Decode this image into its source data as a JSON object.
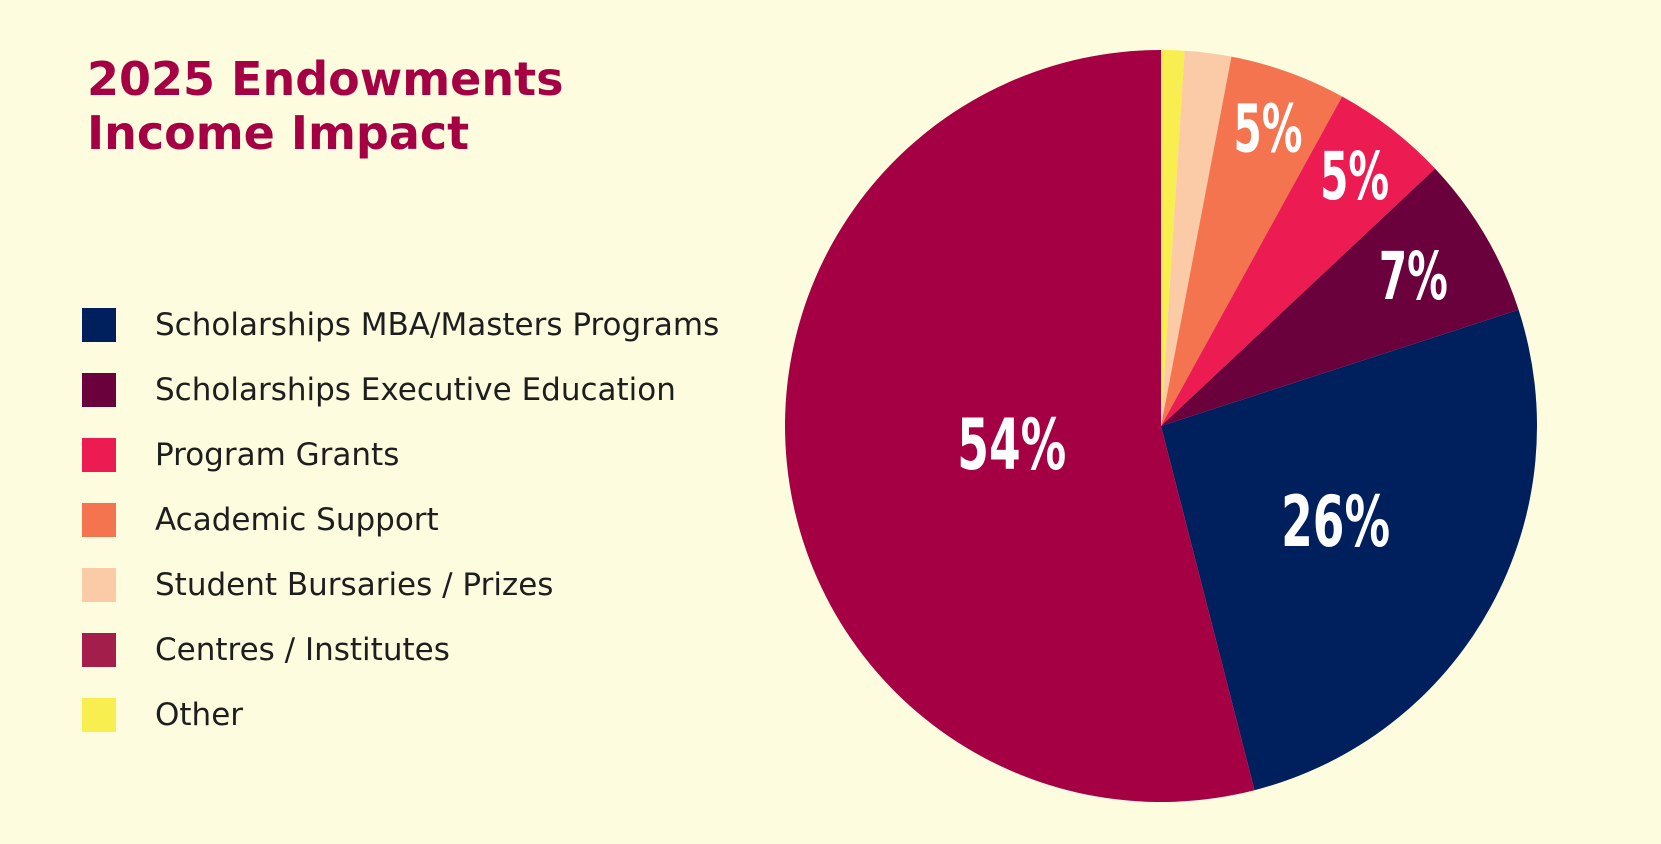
{
  "chart_data": {
    "type": "pie",
    "title_lines": [
      "2025 Endowments",
      "Income Impact"
    ],
    "legend_position": "left",
    "start": "top",
    "direction": "clockwise",
    "slices": [
      {
        "name": "Other",
        "value": 1,
        "color": "#F9EE4F",
        "label": ""
      },
      {
        "name": "Student Bursaries / Prizes",
        "value": 2,
        "color": "#FBCBA8",
        "label": ""
      },
      {
        "name": "Academic Support",
        "value": 5,
        "color": "#F4744F",
        "label": "5%"
      },
      {
        "name": "Program Grants",
        "value": 5,
        "color": "#EC1B51",
        "label": "5%"
      },
      {
        "name": "Scholarships Executive Education",
        "value": 7,
        "color": "#6A003C",
        "label": "7%"
      },
      {
        "name": "Scholarships MBA/Masters Programs",
        "value": 26,
        "color": "#001F5D",
        "label": "26%"
      },
      {
        "name": "Centres / Institutes",
        "value": 54,
        "color": "#A50044",
        "label": "54%"
      }
    ],
    "legend": [
      {
        "name": "Scholarships MBA/Masters Programs",
        "color": "#001F5D"
      },
      {
        "name": "Scholarships Executive Education",
        "color": "#6A003C"
      },
      {
        "name": "Program Grants",
        "color": "#EC1B51"
      },
      {
        "name": "Academic Support",
        "color": "#F4744F"
      },
      {
        "name": "Student Bursaries / Prizes",
        "color": "#FBCBA8"
      },
      {
        "name": "Centres / Institutes",
        "color": "#A41E4C"
      },
      {
        "name": "Other",
        "color": "#F9EE4F"
      }
    ]
  },
  "colors": {
    "background": "#FEFCDE",
    "title": "#A50044",
    "text": "#1E1E1E"
  }
}
